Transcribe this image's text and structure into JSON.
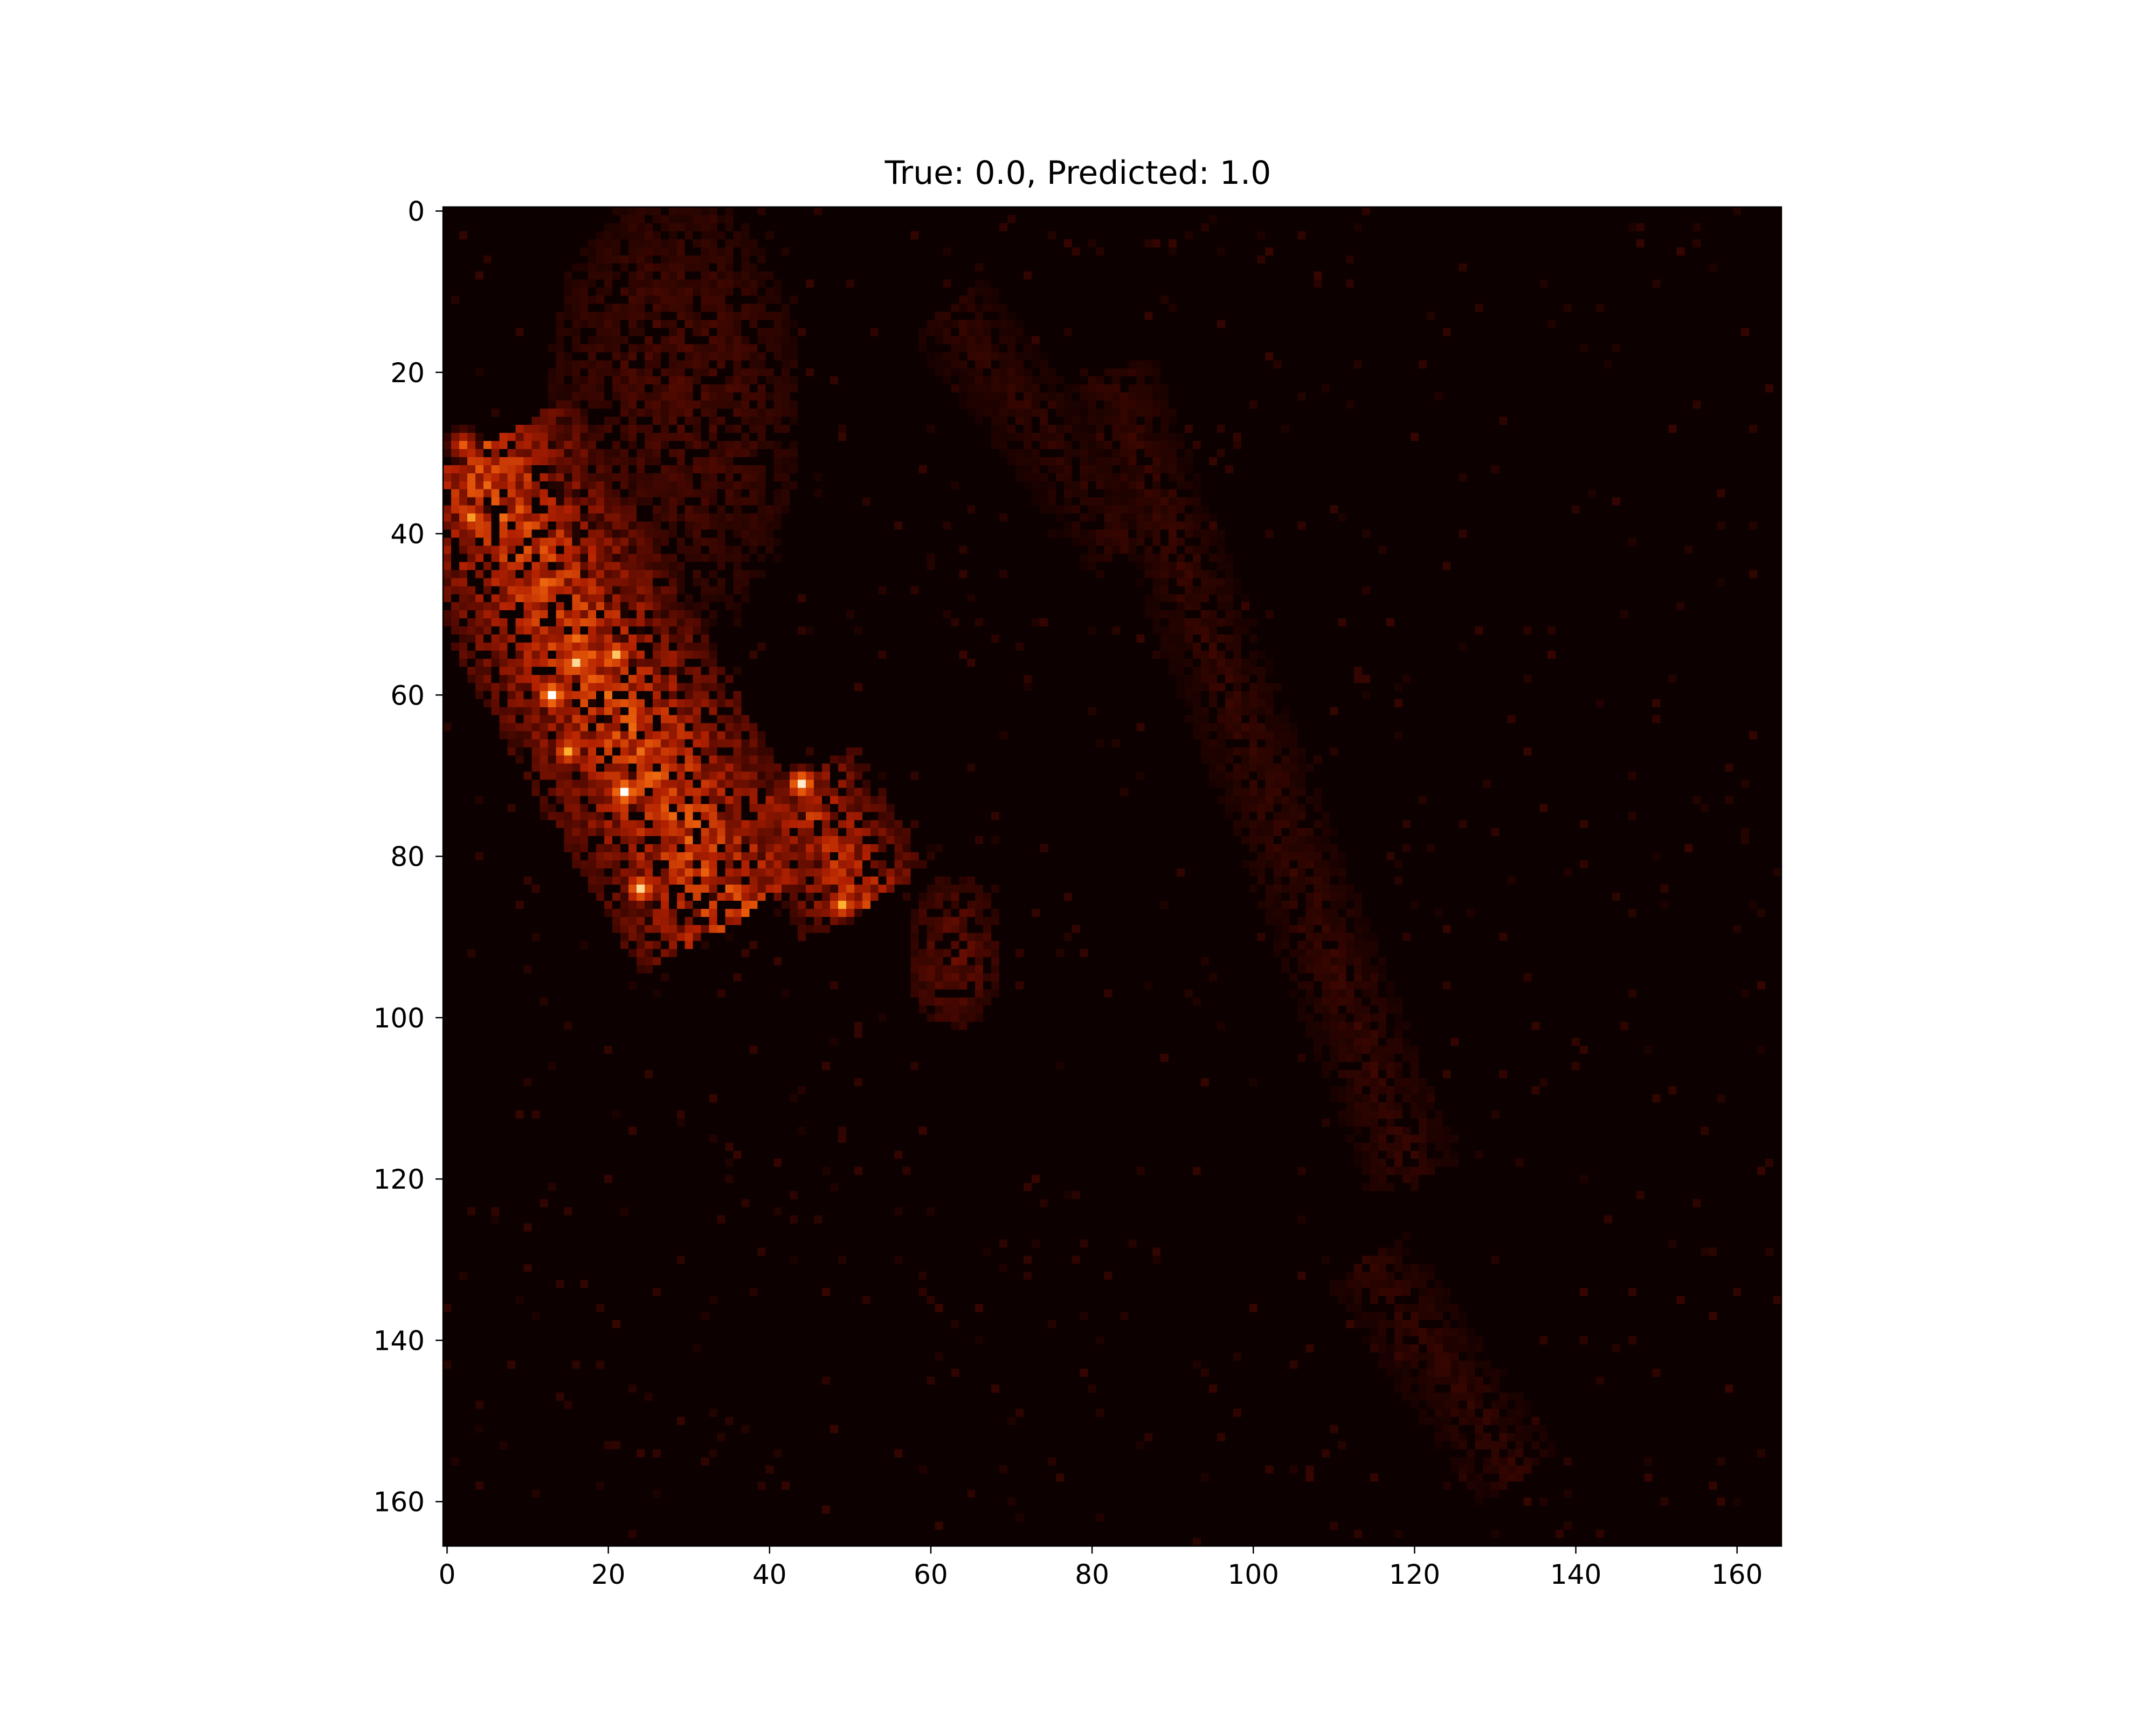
{
  "chart_data": {
    "type": "heatmap",
    "title": "True: 0.0, Predicted: 1.0",
    "xlabel": "",
    "ylabel": "",
    "xlim": [
      -0.5,
      165.5
    ],
    "ylim": [
      165.5,
      -0.5
    ],
    "x_ticks": [
      0,
      20,
      40,
      60,
      80,
      100,
      120,
      140,
      160
    ],
    "y_ticks": [
      0,
      20,
      40,
      60,
      80,
      100,
      120,
      140,
      160
    ],
    "grid": false,
    "colormap": "afmhot",
    "colormap_stops": [
      "#0d0000",
      "#5a0a00",
      "#b22000",
      "#e85a0a",
      "#ffb030",
      "#ffffff"
    ],
    "background_value": 0,
    "regions": [
      {
        "name": "upper-left diffuse cloud",
        "cx": 28,
        "cy": 25,
        "rx": 16,
        "ry": 28,
        "value": 0.12
      },
      {
        "name": "main diagonal band",
        "x1": 3,
        "y1": 30,
        "x2": 36,
        "y2": 88,
        "width": 14,
        "value": 0.45
      },
      {
        "name": "secondary blob",
        "x1": 43,
        "y1": 71,
        "x2": 52,
        "y2": 86,
        "width": 9,
        "value": 0.38
      },
      {
        "name": "faint streak A",
        "x1": 62,
        "y1": 12,
        "x2": 85,
        "y2": 42,
        "width": 6,
        "value": 0.08
      },
      {
        "name": "faint streak B",
        "x1": 82,
        "y1": 20,
        "x2": 120,
        "y2": 120,
        "width": 6,
        "value": 0.09
      },
      {
        "name": "lower streak",
        "x1": 114,
        "y1": 130,
        "x2": 133,
        "y2": 157,
        "width": 6,
        "value": 0.08
      },
      {
        "name": "small blob near 63,90",
        "cx": 63,
        "cy": 92,
        "rx": 6,
        "ry": 10,
        "value": 0.16
      }
    ],
    "hotspots": [
      {
        "x": 13,
        "y": 60,
        "value": 1.0
      },
      {
        "x": 22,
        "y": 72,
        "value": 1.0
      },
      {
        "x": 44,
        "y": 71,
        "value": 0.95
      },
      {
        "x": 24,
        "y": 84,
        "value": 0.9
      },
      {
        "x": 21,
        "y": 55,
        "value": 0.85
      },
      {
        "x": 16,
        "y": 56,
        "value": 0.9
      },
      {
        "x": 15,
        "y": 67,
        "value": 0.8
      },
      {
        "x": 3,
        "y": 38,
        "value": 0.75
      },
      {
        "x": 49,
        "y": 86,
        "value": 0.8
      },
      {
        "x": 2,
        "y": 29,
        "value": 0.6
      }
    ]
  }
}
